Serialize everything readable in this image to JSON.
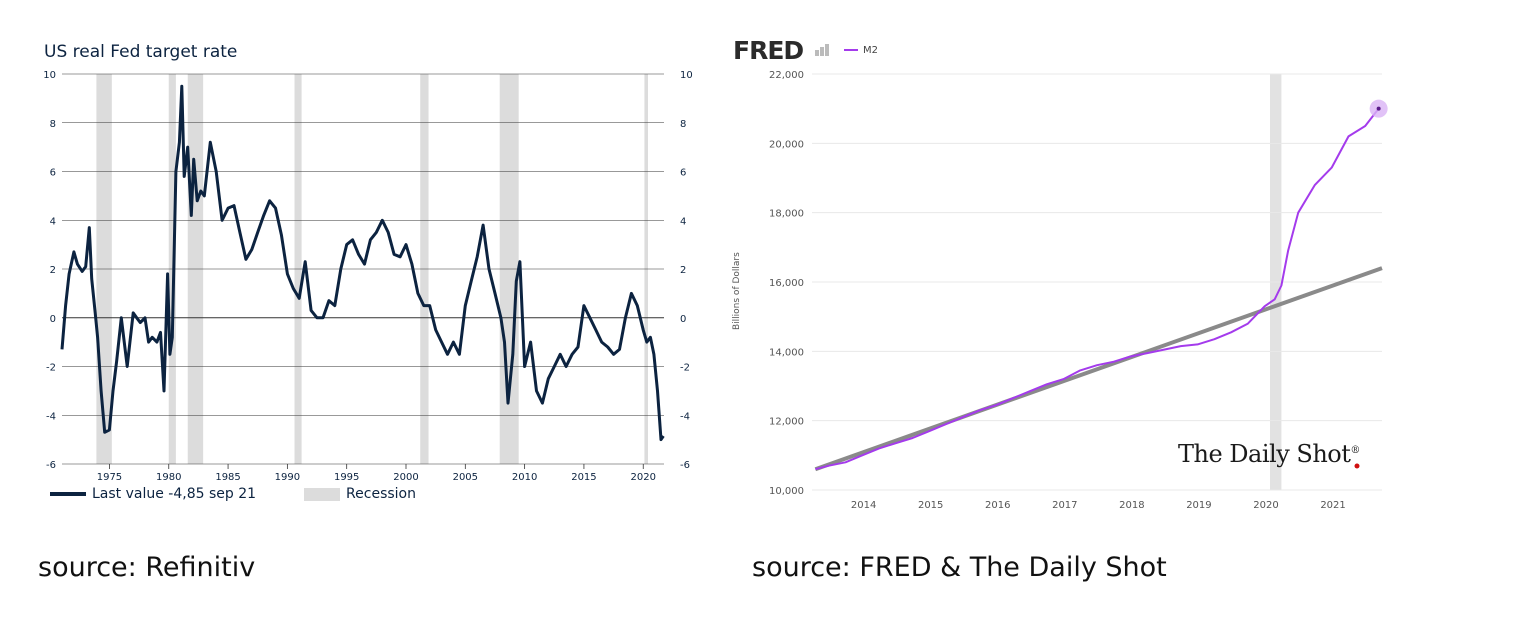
{
  "left_panel": {
    "title": "US real Fed target rate",
    "legend_line_label": "Last value -4,85 sep 21",
    "legend_recession_label": "Recession",
    "source": "source: Refinitiv"
  },
  "right_panel": {
    "logo_text": "FRED",
    "series_label": "M2",
    "y_axis_label": "Billions of Dollars",
    "watermark": "The Daily Shot",
    "source": "source: FRED & The Daily Shot"
  },
  "colors": {
    "fed_line": "#0c2340",
    "recession_band": "#dcdcdc",
    "m2_line": "#a43bec",
    "trend_line": "#8a8a8a",
    "grid": "#333333"
  },
  "chart_data": [
    {
      "type": "line",
      "title": "US real Fed target rate",
      "xlim": [
        1971,
        2021.75
      ],
      "ylim": [
        -6,
        10
      ],
      "yticks": [
        10,
        8,
        6,
        4,
        2,
        0,
        -2,
        -4,
        -6
      ],
      "xticks": [
        1975,
        1980,
        1985,
        1990,
        1995,
        2000,
        2005,
        2010,
        2015,
        2020
      ],
      "grid": true,
      "recessions": [
        [
          1973.9,
          1975.2
        ],
        [
          1980.0,
          1980.6
        ],
        [
          1981.6,
          1982.9
        ],
        [
          1990.6,
          1991.2
        ],
        [
          2001.2,
          2001.9
        ],
        [
          2007.9,
          2009.5
        ],
        [
          2020.1,
          2020.4
        ]
      ],
      "series": [
        {
          "name": "Last value -4,85 sep 21",
          "x": [
            1971.0,
            1971.3,
            1971.6,
            1972.0,
            1972.3,
            1972.7,
            1973.0,
            1973.3,
            1973.5,
            1973.8,
            1974.0,
            1974.3,
            1974.6,
            1975.0,
            1975.3,
            1975.6,
            1976.0,
            1976.5,
            1977.0,
            1977.3,
            1977.6,
            1978.0,
            1978.3,
            1978.6,
            1979.0,
            1979.3,
            1979.6,
            1979.9,
            1980.1,
            1980.3,
            1980.6,
            1980.9,
            1981.1,
            1981.3,
            1981.6,
            1981.9,
            1982.1,
            1982.4,
            1982.7,
            1983.0,
            1983.5,
            1984.0,
            1984.5,
            1985.0,
            1985.5,
            1986.0,
            1986.5,
            1987.0,
            1987.5,
            1988.0,
            1988.5,
            1989.0,
            1989.5,
            1990.0,
            1990.5,
            1991.0,
            1991.5,
            1992.0,
            1992.5,
            1993.0,
            1993.5,
            1994.0,
            1994.5,
            1995.0,
            1995.5,
            1996.0,
            1996.5,
            1997.0,
            1997.5,
            1998.0,
            1998.5,
            1999.0,
            1999.5,
            2000.0,
            2000.5,
            2001.0,
            2001.5,
            2002.0,
            2002.5,
            2003.0,
            2003.5,
            2004.0,
            2004.5,
            2005.0,
            2005.5,
            2006.0,
            2006.5,
            2007.0,
            2007.5,
            2008.0,
            2008.3,
            2008.6,
            2009.0,
            2009.3,
            2009.6,
            2010.0,
            2010.5,
            2011.0,
            2011.5,
            2012.0,
            2012.5,
            2013.0,
            2013.5,
            2014.0,
            2014.5,
            2015.0,
            2015.5,
            2016.0,
            2016.5,
            2017.0,
            2017.5,
            2018.0,
            2018.5,
            2019.0,
            2019.5,
            2020.0,
            2020.3,
            2020.6,
            2020.9,
            2021.2,
            2021.5,
            2021.7
          ],
          "y": [
            -1.3,
            0.5,
            1.8,
            2.7,
            2.2,
            1.9,
            2.1,
            3.7,
            1.6,
            0.2,
            -0.8,
            -3.0,
            -4.7,
            -4.6,
            -3.0,
            -1.8,
            0.0,
            -2.0,
            0.2,
            0.0,
            -0.2,
            0.0,
            -1.0,
            -0.8,
            -1.0,
            -0.6,
            -3.0,
            1.8,
            -1.5,
            -0.8,
            6.0,
            7.2,
            9.5,
            5.8,
            7.0,
            4.2,
            6.5,
            4.8,
            5.2,
            5.0,
            7.2,
            6.0,
            4.0,
            4.5,
            4.6,
            3.5,
            2.4,
            2.8,
            3.5,
            4.2,
            4.8,
            4.5,
            3.4,
            1.8,
            1.2,
            0.8,
            2.3,
            0.3,
            0.0,
            0.0,
            0.7,
            0.5,
            2.0,
            3.0,
            3.2,
            2.6,
            2.2,
            3.2,
            3.5,
            4.0,
            3.5,
            2.6,
            2.5,
            3.0,
            2.2,
            1.0,
            0.5,
            0.5,
            -0.5,
            -1.0,
            -1.5,
            -1.0,
            -1.5,
            0.5,
            1.5,
            2.5,
            3.8,
            2.0,
            1.0,
            0.0,
            -1.0,
            -3.5,
            -1.5,
            1.5,
            2.3,
            -2.0,
            -1.0,
            -3.0,
            -3.5,
            -2.5,
            -2.0,
            -1.5,
            -2.0,
            -1.5,
            -1.2,
            0.5,
            0.0,
            -0.5,
            -1.0,
            -1.2,
            -1.5,
            -1.3,
            0.0,
            1.0,
            0.5,
            -0.5,
            -1.0,
            -0.8,
            -1.5,
            -3.0,
            -5.0,
            -4.85
          ]
        }
      ]
    },
    {
      "type": "line",
      "ylabel": "Billions of Dollars",
      "xlim": [
        2013.25,
        2021.75
      ],
      "ylim": [
        10000,
        22000
      ],
      "yticks": [
        10000,
        12000,
        14000,
        16000,
        18000,
        20000,
        22000
      ],
      "xticks": [
        2014,
        2015,
        2016,
        2017,
        2018,
        2019,
        2020,
        2021
      ],
      "grid": true,
      "legend": "top-left",
      "shaded_periods": [
        [
          2020.08,
          2020.25
        ]
      ],
      "series": [
        {
          "name": "M2",
          "x": [
            2013.3,
            2013.5,
            2013.75,
            2014.0,
            2014.25,
            2014.5,
            2014.75,
            2015.0,
            2015.25,
            2015.5,
            2015.75,
            2016.0,
            2016.25,
            2016.5,
            2016.75,
            2017.0,
            2017.25,
            2017.5,
            2017.75,
            2018.0,
            2018.25,
            2018.5,
            2018.75,
            2019.0,
            2019.25,
            2019.5,
            2019.75,
            2020.0,
            2020.15,
            2020.25,
            2020.35,
            2020.5,
            2020.75,
            2021.0,
            2021.25,
            2021.5,
            2021.7
          ],
          "y": [
            10600,
            10700,
            10800,
            11000,
            11200,
            11350,
            11500,
            11700,
            11900,
            12100,
            12300,
            12450,
            12650,
            12850,
            13050,
            13200,
            13450,
            13600,
            13700,
            13850,
            13950,
            14050,
            14150,
            14200,
            14350,
            14550,
            14800,
            15300,
            15500,
            15900,
            16900,
            18000,
            18800,
            19300,
            20200,
            20500,
            21000
          ]
        },
        {
          "name": "",
          "x": [
            2013.3,
            2021.75
          ],
          "y": [
            10600,
            16400
          ]
        }
      ]
    }
  ]
}
